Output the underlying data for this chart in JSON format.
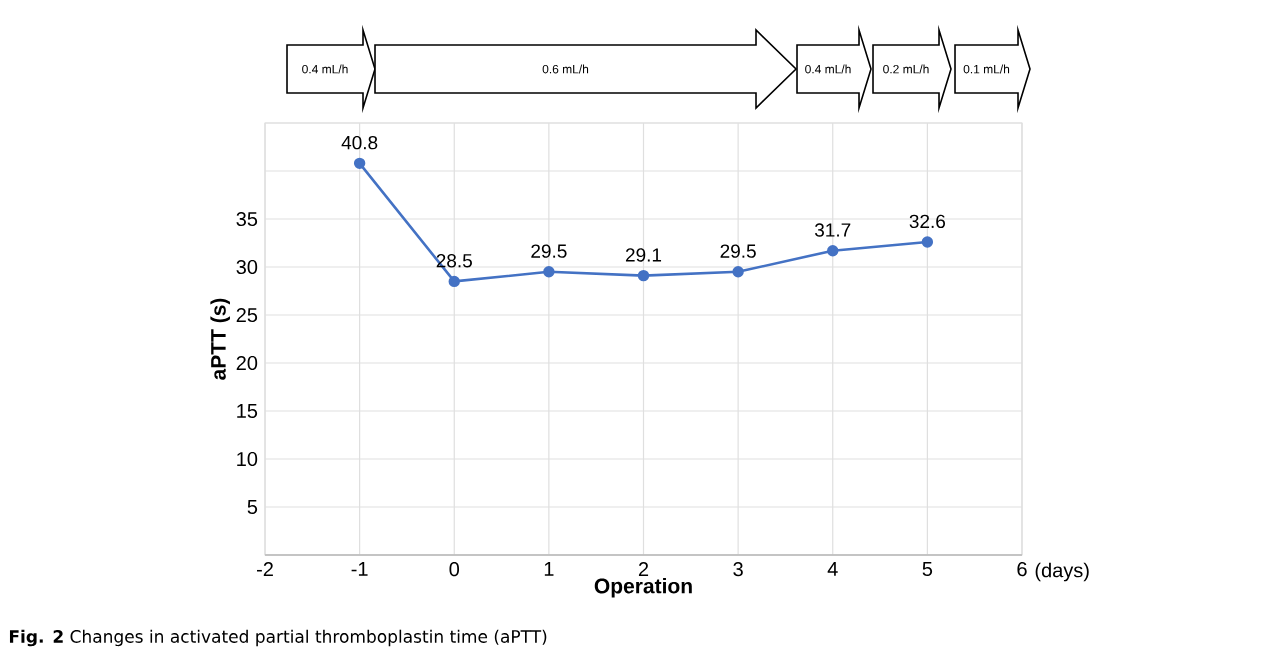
{
  "chart_data": {
    "type": "line",
    "xlabel": "Operation",
    "ylabel": "aPTT (s)",
    "x": [
      -1,
      0,
      1,
      2,
      3,
      4,
      5
    ],
    "series": [
      {
        "color": "#4472c4",
        "values": [
          40.8,
          28.5,
          29.5,
          29.1,
          29.5,
          31.7,
          32.6
        ]
      }
    ],
    "xlim": [
      -2,
      6
    ],
    "xticks": [
      -2,
      -1,
      0,
      1,
      2,
      3,
      4,
      5,
      6
    ],
    "ylim": [
      0,
      45
    ],
    "yticks": [
      {
        "value": 0,
        "label": null
      },
      5,
      10,
      15,
      20,
      25,
      30,
      35,
      {
        "value": 40,
        "label": null
      },
      {
        "value": 45,
        "label": null
      }
    ],
    "grid": true,
    "marker": "circle",
    "line_style": "solid",
    "data_labels": true,
    "annotations": [
      "0.4 mL/h",
      "0.6 mL/h",
      "0.4 mL/h",
      "0.2 mL/h",
      "0.1 mL/h",
      "(days)",
      "**Fig. 2**  Changes in activated partial thromboplastin time (aPTT)"
    ]
  }
}
